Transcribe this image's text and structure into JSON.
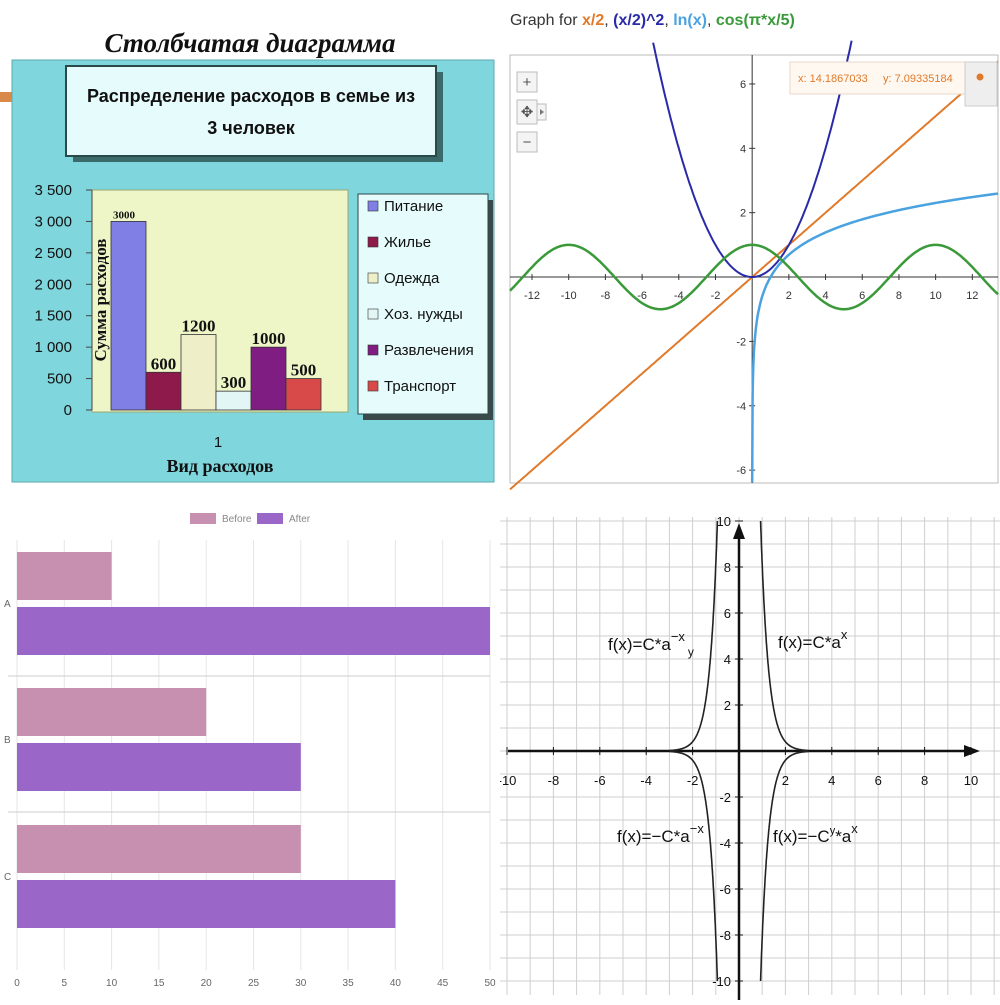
{
  "colors": {
    "teal_bg": "#7fd6dc",
    "plot_bg": "#eef6c8",
    "food": "#7f7fe6",
    "housing": "#8e1a4c",
    "clothing": "#eeeec8",
    "household": "#e2f6f6",
    "entertainment": "#7f1d82",
    "transport": "#d84a4a",
    "orange": "#e07a2a",
    "navy": "#2a2aa8",
    "blue": "#4aa3e0",
    "green": "#3a9a3a",
    "before": "#c890b0",
    "after": "#9a66c8"
  },
  "panel_tl": {
    "heading": "Столбчатая диаграмма",
    "title_line1": "Распределение расходов в семье из",
    "title_line2": "3 человек"
  },
  "panel_tr": {
    "title_prefix": "Graph for ",
    "f1": "x/2",
    "f2": "(x/2)^2",
    "f3": "ln(x)",
    "f4": "cos(π*x/5)",
    "sep": ", ",
    "readout_x": "x: 14.1867033",
    "readout_y": "y: 7.09335184",
    "zoom_in": "+",
    "zoom_out": "−",
    "pan": "✥"
  },
  "panel_br": {
    "label_tl_base": "f(x)=C*a",
    "label_tl_exp": "−x",
    "label_tl_extra": "y",
    "label_tr_base": "f(x)=C*a",
    "label_tr_exp": "x",
    "label_bl_base": "f(x)=−C*a",
    "label_bl_exp": "−x",
    "label_br_base": "f(x)=−C",
    "label_br_mid": "*a",
    "label_br_exp": "x",
    "label_br_extra": "y"
  },
  "chart_data": [
    {
      "type": "bar",
      "title": "Распределение расходов в семье из 3 человек",
      "ylabel": "Сумма расходов",
      "xlabel": "Вид расходов",
      "categories": [
        "1"
      ],
      "ylim": [
        0,
        3500
      ],
      "yticks": [
        0,
        500,
        1000,
        1500,
        2000,
        2500,
        3000,
        3500
      ],
      "ytick_labels": [
        "0",
        "500",
        "1 000",
        "1 500",
        "2 000",
        "2 500",
        "3 000",
        "3 500"
      ],
      "series": [
        {
          "name": "Питание",
          "values": [
            3000
          ],
          "label": "3000"
        },
        {
          "name": "Жилье",
          "values": [
            600
          ],
          "label": "600"
        },
        {
          "name": "Одежда",
          "values": [
            1200
          ],
          "label": "1200"
        },
        {
          "name": "Хоз. нужды",
          "values": [
            300
          ],
          "label": "300"
        },
        {
          "name": "Развлечения",
          "values": [
            1000
          ],
          "label": "1000"
        },
        {
          "name": "Транспорт",
          "values": [
            500
          ],
          "label": "500"
        }
      ],
      "legend": "right"
    },
    {
      "type": "line",
      "title": "Graph for x/2, (x/2)^2, ln(x), cos(π*x/5)",
      "xlim": [
        -13.2,
        13.4
      ],
      "ylim": [
        -6.4,
        6.9
      ],
      "xticks": [
        -12,
        -10,
        -8,
        -6,
        -4,
        -2,
        2,
        4,
        6,
        8,
        10,
        12
      ],
      "yticks": [
        -6,
        -4,
        -2,
        2,
        4,
        6
      ],
      "series": [
        {
          "name": "x/2",
          "expression": "x/2"
        },
        {
          "name": "(x/2)^2",
          "expression": "(x/2)^2"
        },
        {
          "name": "ln(x)",
          "expression": "ln(x)"
        },
        {
          "name": "cos(π*x/5)",
          "expression": "cos(pi*x/5)"
        }
      ],
      "grid": false
    },
    {
      "type": "bar",
      "orientation": "horizontal",
      "categories": [
        "A",
        "B",
        "C"
      ],
      "series": [
        {
          "name": "Before",
          "values": [
            10,
            20,
            30
          ]
        },
        {
          "name": "After",
          "values": [
            50,
            30,
            40
          ]
        }
      ],
      "xlim": [
        0,
        50
      ],
      "xticks": [
        0,
        5,
        10,
        15,
        20,
        25,
        30,
        35,
        40,
        45,
        50
      ],
      "legend": "top",
      "grid": true
    },
    {
      "type": "line",
      "xlim": [
        -10,
        10
      ],
      "ylim": [
        -10,
        10
      ],
      "xticks": [
        -10,
        -8,
        -6,
        -4,
        -2,
        2,
        4,
        6,
        8,
        10
      ],
      "yticks": [
        -10,
        -8,
        -6,
        -4,
        -2,
        2,
        4,
        6,
        8,
        10
      ],
      "series": [
        {
          "name": "f(x)=C*a^-x",
          "expression": "1/|x| branch, x<0, y>0"
        },
        {
          "name": "f(x)=C*a^x",
          "expression": "1/|x| branch, x>0, y>0"
        },
        {
          "name": "f(x)=-C*a^-x",
          "expression": "-1/|x| branch, x<0, y<0"
        },
        {
          "name": "f(x)=-C*a^x",
          "expression": "-1/|x| branch, x>0, y<0"
        }
      ],
      "grid": true
    }
  ]
}
